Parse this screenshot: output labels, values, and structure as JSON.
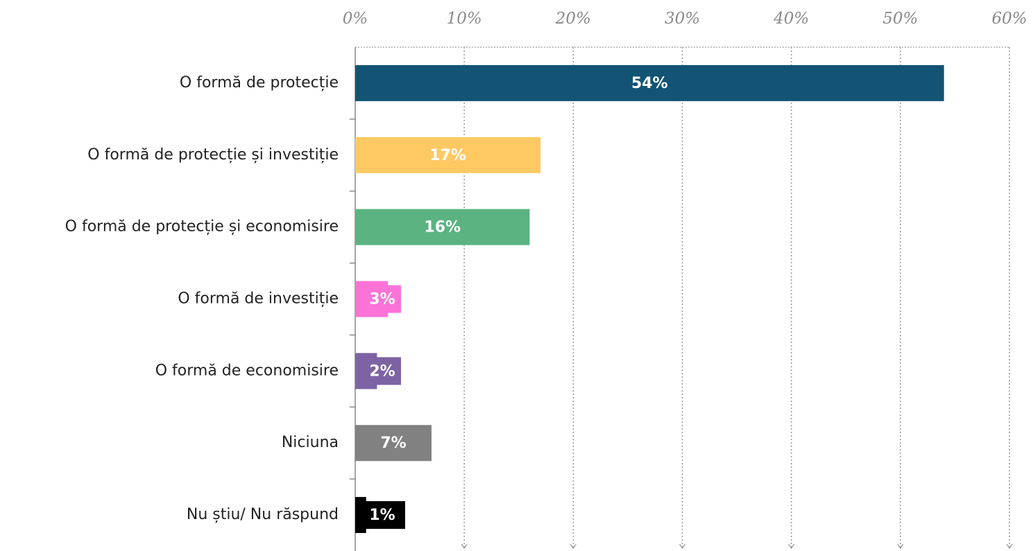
{
  "chart_data": {
    "type": "bar",
    "orientation": "horizontal",
    "categories": [
      "O formă de protecție",
      "O formă de protecție și investiție",
      "O formă de protecție și economisire",
      "O formă de investiție",
      "O formă de economisire",
      "Niciuna",
      "Nu știu/ Nu răspund"
    ],
    "values": [
      54,
      17,
      16,
      3,
      2,
      7,
      1
    ],
    "value_labels": [
      "54%",
      "17%",
      "16%",
      "3%",
      "2%",
      "7%",
      "1%"
    ],
    "colors": [
      "#135373",
      "#fec963",
      "#5bb381",
      "#fc73d8",
      "#7d63a3",
      "#818181",
      "#000000"
    ],
    "xlim": [
      0,
      60
    ],
    "xticks": [
      {
        "value": 0,
        "label": "0%"
      },
      {
        "value": 10,
        "label": "10%"
      },
      {
        "value": 20,
        "label": "20%"
      },
      {
        "value": 30,
        "label": "30%"
      },
      {
        "value": 40,
        "label": "40%"
      },
      {
        "value": 50,
        "label": "50%"
      },
      {
        "value": 60,
        "label": "60%"
      }
    ],
    "grid": true
  }
}
